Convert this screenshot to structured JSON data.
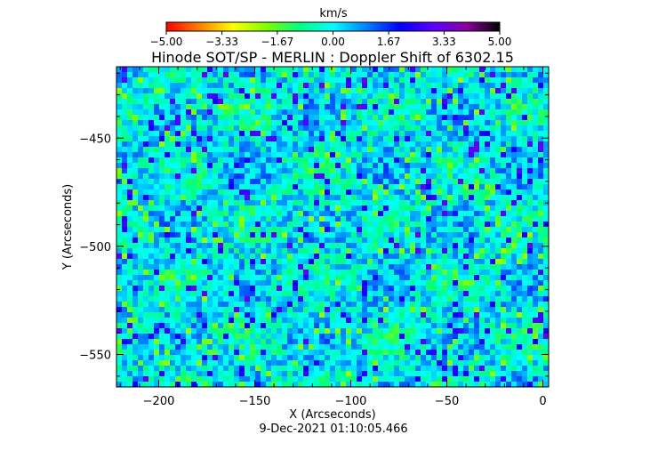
{
  "chart_data": {
    "type": "heatmap",
    "title": "Hinode SOT/SP - MERLIN : Doppler Shift of 6302.15",
    "xlabel": "X (Arcseconds)",
    "ylabel": "Y (Arcseconds)",
    "footer": "9-Dec-2021 01:10:05.466",
    "xlim": [
      -222,
      3
    ],
    "ylim": [
      -565,
      -417
    ],
    "xticks": [
      -200,
      -150,
      -100,
      -50,
      0
    ],
    "xtick_labels": [
      "−200",
      "−150",
      "−100",
      "−50",
      "0"
    ],
    "yticks": [
      -450,
      -500,
      -550
    ],
    "ytick_labels": [
      "−450",
      "−500",
      "−550"
    ],
    "colorbar": {
      "label": "km/s",
      "range": [
        -5.0,
        5.0
      ],
      "ticks": [
        -5.0,
        -3.33,
        -1.67,
        0.0,
        1.67,
        3.33,
        5.0
      ],
      "tick_labels": [
        "−5.00",
        "−3.33",
        "−1.67",
        "0.00",
        "1.67",
        "3.33",
        "5.00"
      ],
      "colors": [
        "#ff0000",
        "#ff7f00",
        "#ffff00",
        "#7fff00",
        "#00ff7f",
        "#00ffff",
        "#0080ff",
        "#0000ff",
        "#5a00ff",
        "#8c00a0",
        "#000000"
      ]
    },
    "grid": false
  }
}
